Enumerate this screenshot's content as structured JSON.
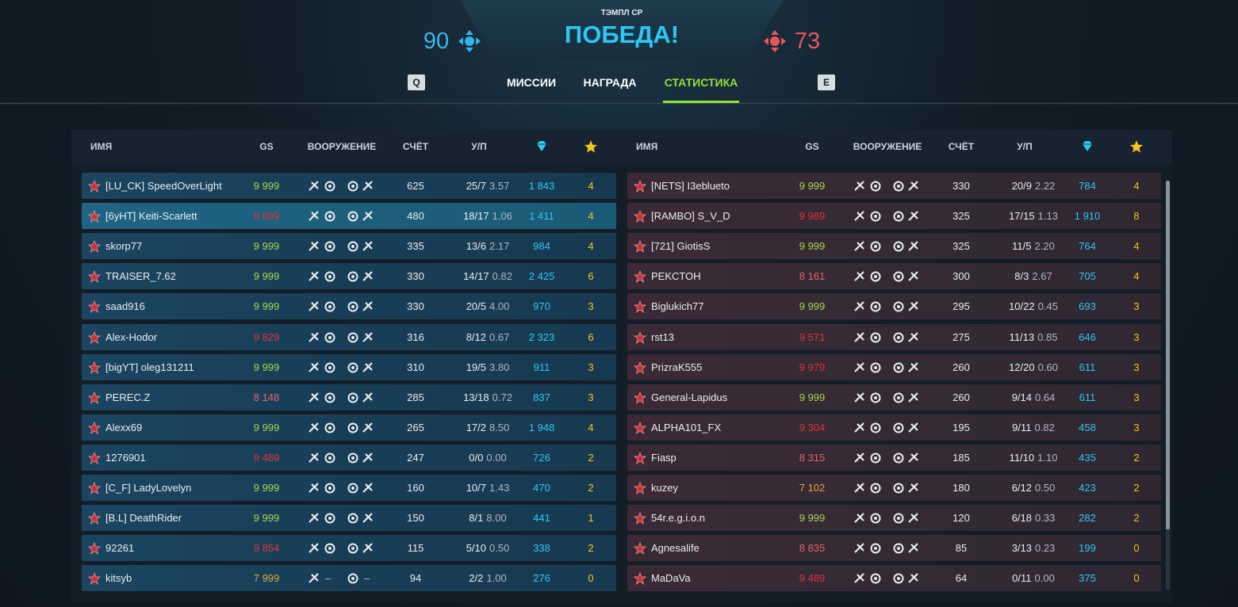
{
  "header": {
    "mode": "ТЭМПЛ СР",
    "result": "ПОБЕДА!",
    "score_left": "90",
    "score_right": "73"
  },
  "tabs": [
    {
      "key": "Q"
    },
    {
      "label": "МИССИИ"
    },
    {
      "label": "НАГРАДА"
    },
    {
      "label": "СТАТИСТИКА",
      "active": true
    },
    {
      "key": "E"
    }
  ],
  "columns": [
    "ИМЯ",
    "GS",
    "ВООРУЖЕНИЕ",
    "СЧЁТ",
    "У/П"
  ],
  "teams": [
    {
      "side": "blue",
      "rows": [
        {
          "name": "[LU_CK] SpeedOverLight",
          "gs": "9 999",
          "gs_color": "#a6d84a",
          "score": "625",
          "kd": "25/7",
          "ratio": "3.57",
          "diamonds": "1 843",
          "stars": "4"
        },
        {
          "name": "[6yHT] Keiti-Scarlett",
          "gs": "9 899",
          "gs_color": "#e0323c",
          "score": "480",
          "kd": "18/17",
          "ratio": "1.06",
          "diamonds": "1 411",
          "stars": "4",
          "highlight": true
        },
        {
          "name": "skorp77",
          "gs": "9 999",
          "gs_color": "#a6d84a",
          "score": "335",
          "kd": "13/6",
          "ratio": "2.17",
          "diamonds": "984",
          "stars": "4"
        },
        {
          "name": "TRAISER_7.62",
          "gs": "9 999",
          "gs_color": "#a6d84a",
          "score": "330",
          "kd": "14/17",
          "ratio": "0.82",
          "diamonds": "2 425",
          "stars": "6"
        },
        {
          "name": "saad916",
          "gs": "9 999",
          "gs_color": "#a6d84a",
          "score": "330",
          "kd": "20/5",
          "ratio": "4.00",
          "diamonds": "970",
          "stars": "3"
        },
        {
          "name": "Alex-Hodor",
          "gs": "9 829",
          "gs_color": "#e0323c",
          "score": "316",
          "kd": "8/12",
          "ratio": "0.67",
          "diamonds": "2 323",
          "stars": "6"
        },
        {
          "name": "[bigYT] oleg131211",
          "gs": "9 999",
          "gs_color": "#a6d84a",
          "score": "310",
          "kd": "19/5",
          "ratio": "3.80",
          "diamonds": "911",
          "stars": "3"
        },
        {
          "name": "PEREC.Z",
          "gs": "8 148",
          "gs_color": "#e8636a",
          "score": "285",
          "kd": "13/18",
          "ratio": "0.72",
          "diamonds": "837",
          "stars": "3"
        },
        {
          "name": "Alexx69",
          "gs": "9 999",
          "gs_color": "#a6d84a",
          "score": "265",
          "kd": "17/2",
          "ratio": "8.50",
          "diamonds": "1 948",
          "stars": "4"
        },
        {
          "name": "1276901",
          "gs": "9 489",
          "gs_color": "#e0323c",
          "score": "247",
          "kd": "0/0",
          "ratio": "0.00",
          "diamonds": "726",
          "stars": "2"
        },
        {
          "name": "[C_F] LadyLovelyn",
          "gs": "9 999",
          "gs_color": "#a6d84a",
          "score": "160",
          "kd": "10/7",
          "ratio": "1.43",
          "diamonds": "470",
          "stars": "2"
        },
        {
          "name": "[B.L] DeathRider",
          "gs": "9 999",
          "gs_color": "#a6d84a",
          "score": "150",
          "kd": "8/1",
          "ratio": "8.00",
          "diamonds": "441",
          "stars": "1"
        },
        {
          "name": "92261",
          "gs": "9 854",
          "gs_color": "#e0323c",
          "score": "115",
          "kd": "5/10",
          "ratio": "0.50",
          "diamonds": "338",
          "stars": "2"
        },
        {
          "name": "kitsyb",
          "gs": "7 999",
          "gs_color": "#e8a53a",
          "score": "94",
          "kd": "2/2",
          "ratio": "1.00",
          "diamonds": "276",
          "stars": "0",
          "weapon_text": [
            "–",
            "–"
          ]
        }
      ]
    },
    {
      "side": "red",
      "rows": [
        {
          "name": "[NETS] I3eblueto",
          "gs": "9 999",
          "gs_color": "#a6d84a",
          "score": "330",
          "kd": "20/9",
          "ratio": "2.22",
          "diamonds": "784",
          "stars": "4"
        },
        {
          "name": "[RAMBO] S_V_D",
          "gs": "9 989",
          "gs_color": "#e0323c",
          "score": "325",
          "kd": "17/15",
          "ratio": "1.13",
          "diamonds": "1 910",
          "stars": "8"
        },
        {
          "name": "[721] GiotisS",
          "gs": "9 999",
          "gs_color": "#a6d84a",
          "score": "325",
          "kd": "11/5",
          "ratio": "2.20",
          "diamonds": "764",
          "stars": "4"
        },
        {
          "name": "PEKCTOH",
          "gs": "8 161",
          "gs_color": "#e8636a",
          "score": "300",
          "kd": "8/3",
          "ratio": "2.67",
          "diamonds": "705",
          "stars": "4"
        },
        {
          "name": "Biglukich77",
          "gs": "9 999",
          "gs_color": "#a6d84a",
          "score": "295",
          "kd": "10/22",
          "ratio": "0.45",
          "diamonds": "693",
          "stars": "3"
        },
        {
          "name": "rst13",
          "gs": "9 571",
          "gs_color": "#e0323c",
          "score": "275",
          "kd": "11/13",
          "ratio": "0.85",
          "diamonds": "646",
          "stars": "3"
        },
        {
          "name": "PrizraK555",
          "gs": "9 979",
          "gs_color": "#e0323c",
          "score": "260",
          "kd": "12/20",
          "ratio": "0.60",
          "diamonds": "611",
          "stars": "3"
        },
        {
          "name": "General-Lapidus",
          "gs": "9 999",
          "gs_color": "#a6d84a",
          "score": "260",
          "kd": "9/14",
          "ratio": "0.64",
          "diamonds": "611",
          "stars": "3"
        },
        {
          "name": "ALPHA101_FX",
          "gs": "9 304",
          "gs_color": "#e0323c",
          "score": "195",
          "kd": "9/11",
          "ratio": "0.82",
          "diamonds": "458",
          "stars": "3"
        },
        {
          "name": "Fiasp",
          "gs": "8 315",
          "gs_color": "#e8636a",
          "score": "185",
          "kd": "11/10",
          "ratio": "1.10",
          "diamonds": "435",
          "stars": "2"
        },
        {
          "name": "kuzey",
          "gs": "7 102",
          "gs_color": "#e8a53a",
          "score": "180",
          "kd": "6/12",
          "ratio": "0.50",
          "diamonds": "423",
          "stars": "2"
        },
        {
          "name": "54r.e.g.i.o.n",
          "gs": "9 999",
          "gs_color": "#a6d84a",
          "score": "120",
          "kd": "6/18",
          "ratio": "0.33",
          "diamonds": "282",
          "stars": "2"
        },
        {
          "name": "Agnesalife",
          "gs": "8 835",
          "gs_color": "#e8636a",
          "score": "85",
          "kd": "3/13",
          "ratio": "0.23",
          "diamonds": "199",
          "stars": "0"
        },
        {
          "name": "MaDaVa",
          "gs": "9 489",
          "gs_color": "#e0323c",
          "score": "64",
          "kd": "0/11",
          "ratio": "0.00",
          "diamonds": "375",
          "stars": "0"
        }
      ]
    }
  ]
}
